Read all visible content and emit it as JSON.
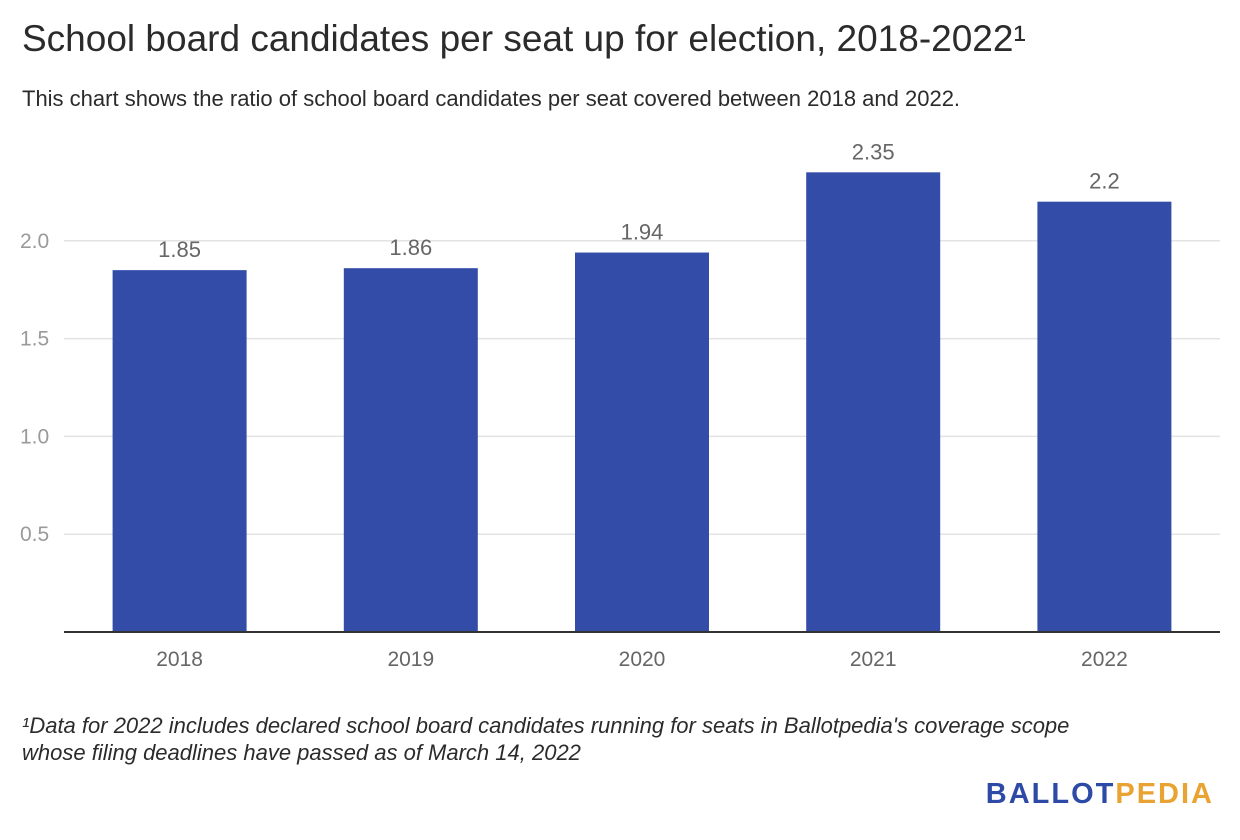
{
  "title": "School board candidates per seat up for election, 2018-2022¹",
  "subtitle": "This chart shows the ratio of school board candidates per seat covered between 2018 and 2022.",
  "footnote_line1": "¹Data for 2022 includes declared school board candidates running for seats in Ballotpedia's coverage scope",
  "footnote_line2": "whose filing deadlines have passed as of March 14, 2022",
  "logo": {
    "part1": "BALLOT",
    "part2": "PEDIA",
    "color1": "#2c4aa6",
    "color2": "#e9a332"
  },
  "chart_data": {
    "type": "bar",
    "categories": [
      "2018",
      "2019",
      "2020",
      "2021",
      "2022"
    ],
    "values": [
      1.85,
      1.86,
      1.94,
      2.35,
      2.2
    ],
    "value_labels": [
      "1.85",
      "1.86",
      "1.94",
      "2.35",
      "2.2"
    ],
    "y_ticks": [
      0.5,
      1.0,
      1.5,
      2.0
    ],
    "y_tick_labels": [
      "0.5",
      "1.0",
      "1.5",
      "2.0"
    ],
    "ylim": [
      0,
      2.5
    ],
    "bar_color": "#334ca8",
    "title": "School board candidates per seat up for election, 2018-2022¹",
    "xlabel": "",
    "ylabel": "",
    "grid": true
  }
}
